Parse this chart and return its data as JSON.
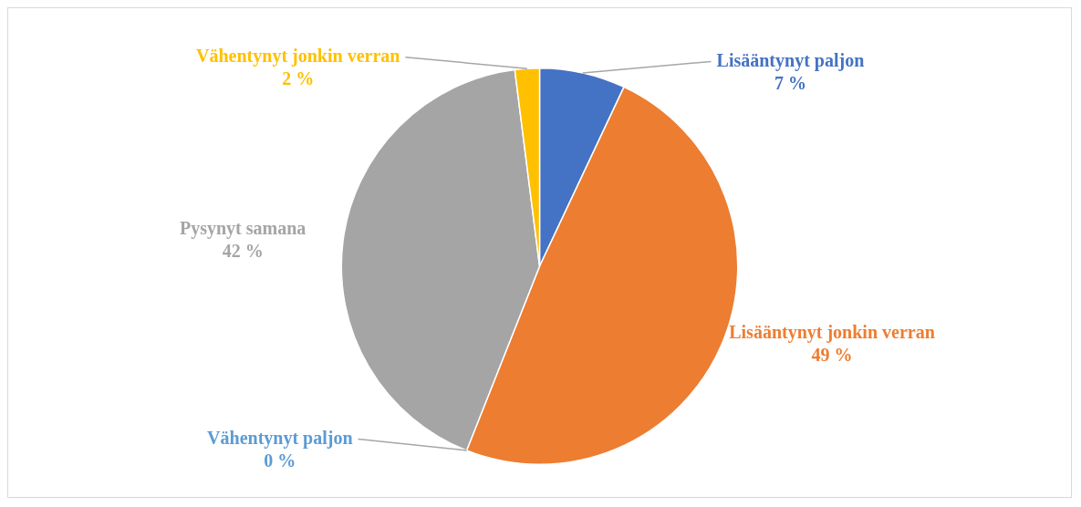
{
  "chart_data": {
    "type": "pie",
    "categories": [
      "Lisääntynyt paljon",
      "Lisääntynyt jonkin verran",
      "Vähentynyt paljon",
      "Pysynyt samana",
      "Vähentynyt jonkin verran"
    ],
    "values": [
      7,
      49,
      0,
      42,
      2
    ],
    "colors": [
      "#4472c4",
      "#ed7d31",
      "#5b9bd5",
      "#a5a5a5",
      "#ffc000"
    ],
    "value_labels": [
      "7 %",
      "49 %",
      "0 %",
      "42 %",
      "2 %"
    ],
    "legend": false
  }
}
